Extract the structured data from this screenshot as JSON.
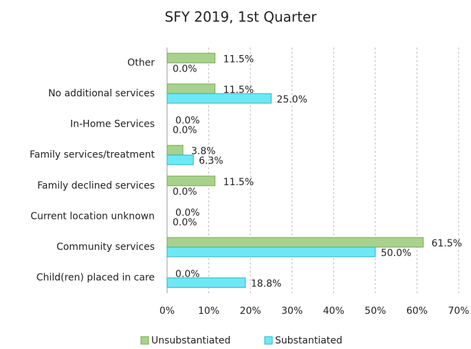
{
  "chart_data": {
    "type": "hbar",
    "title": "SFY 2019, 1st Quarter",
    "categories": [
      "Other",
      "No additional services",
      "In-Home Services",
      "Family services/treatment",
      "Family declined services",
      "Current location unknown",
      "Community services",
      "Child(ren) placed in care"
    ],
    "series": [
      {
        "name": "Unsubstantiated",
        "color": "#a9d18e",
        "values": [
          11.5,
          11.5,
          0,
          3.8,
          11.5,
          0,
          61.5,
          0
        ],
        "value_labels": [
          "11.5%",
          "11.5%",
          "0.0%",
          "3.8%",
          "11.5%",
          "0.0%",
          "61.5%",
          "0.0%"
        ]
      },
      {
        "name": "Substantiated",
        "color": "#6ee8f5",
        "values": [
          0,
          25.0,
          0,
          6.3,
          0,
          0,
          50.0,
          18.8
        ],
        "value_labels": [
          "0.0%",
          "25.0%",
          "0.0%",
          "6.3%",
          "0.0%",
          "0.0%",
          "50.0%",
          "18.8%"
        ]
      }
    ],
    "xlim": [
      0,
      70
    ],
    "xticks": [
      {
        "value": 0,
        "label": "0%"
      },
      {
        "value": 10,
        "label": "10%"
      },
      {
        "value": 20,
        "label": "20%"
      },
      {
        "value": 30,
        "label": "30%"
      },
      {
        "value": 40,
        "label": "40%"
      },
      {
        "value": 50,
        "label": "50%"
      },
      {
        "value": 60,
        "label": "60%"
      },
      {
        "value": 70,
        "label": "70%"
      }
    ],
    "grid": true,
    "legend": "bottom"
  }
}
